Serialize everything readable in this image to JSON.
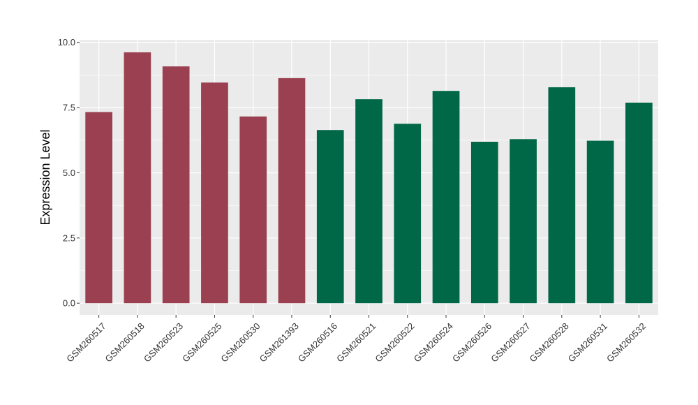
{
  "chart_data": {
    "type": "bar",
    "title": "",
    "xlabel": "",
    "ylabel": "Expression Level",
    "ylim": [
      -0.45,
      10.1
    ],
    "y_ticks": [
      "0.0",
      "2.5",
      "5.0",
      "7.5",
      "10.0"
    ],
    "grid": true,
    "legend": "none",
    "categories": [
      "GSM260517",
      "GSM260518",
      "GSM260523",
      "GSM260525",
      "GSM260530",
      "GSM261393",
      "GSM260516",
      "GSM260521",
      "GSM260522",
      "GSM260524",
      "GSM260526",
      "GSM260527",
      "GSM260528",
      "GSM260531",
      "GSM260532"
    ],
    "values": [
      7.33,
      9.62,
      9.08,
      8.46,
      7.16,
      8.63,
      6.64,
      7.82,
      6.88,
      8.14,
      6.19,
      6.29,
      8.28,
      6.23,
      7.69
    ],
    "bar_colors": [
      "#9a4050",
      "#9a4050",
      "#9a4050",
      "#9a4050",
      "#9a4050",
      "#9a4050",
      "#006747",
      "#006747",
      "#006747",
      "#006747",
      "#006747",
      "#006747",
      "#006747",
      "#006747",
      "#006747"
    ],
    "panel_background": "#ebebeb",
    "grid_color": "#ffffff"
  }
}
